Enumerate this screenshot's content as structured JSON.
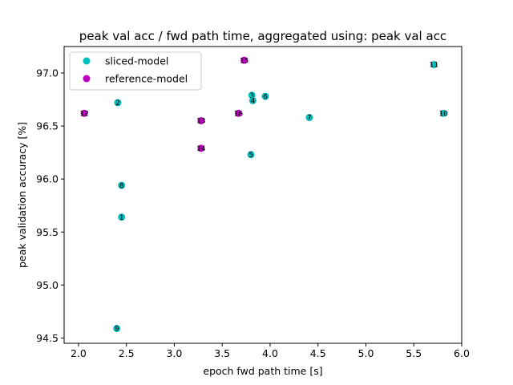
{
  "chart_data": {
    "type": "scatter",
    "title": "peak val acc / fwd path time, aggregated using: peak val acc",
    "xlabel": "epoch fwd path time [s]",
    "ylabel": "peak validation accuracy [%]",
    "xlim": [
      1.85,
      6.0
    ],
    "ylim": [
      94.45,
      97.25
    ],
    "xticks": [
      "2.0",
      "2.5",
      "3.0",
      "3.5",
      "4.0",
      "4.5",
      "5.0",
      "5.5",
      "6.0"
    ],
    "yticks": [
      "94.5",
      "95.0",
      "95.5",
      "96.0",
      "96.5",
      "97.0"
    ],
    "grid": false,
    "legend": "top-left",
    "series": [
      {
        "name": "sliced-model",
        "color": "#00bfbf",
        "points": [
          {
            "label": "1",
            "x": 2.45,
            "y": 95.64
          },
          {
            "label": "2",
            "x": 2.41,
            "y": 96.72
          },
          {
            "label": "3",
            "x": 3.81,
            "y": 96.79
          },
          {
            "label": "4",
            "x": 3.82,
            "y": 96.74
          },
          {
            "label": "5",
            "x": 3.8,
            "y": 96.23
          },
          {
            "label": "6",
            "x": 3.95,
            "y": 96.78
          },
          {
            "label": "7",
            "x": 4.41,
            "y": 96.58
          },
          {
            "label": "8",
            "x": 2.45,
            "y": 95.94
          },
          {
            "label": "9",
            "x": 2.4,
            "y": 94.59
          },
          {
            "label": "10",
            "x": 5.81,
            "y": 96.62
          },
          {
            "label": "11",
            "x": 5.71,
            "y": 97.08
          }
        ]
      },
      {
        "name": "reference-model",
        "color": "#bf00bf",
        "points": [
          {
            "label": "12",
            "x": 2.06,
            "y": 96.62
          },
          {
            "label": "13",
            "x": 3.28,
            "y": 96.55
          },
          {
            "label": "14",
            "x": 3.28,
            "y": 96.29
          },
          {
            "label": "15",
            "x": 3.73,
            "y": 97.12
          },
          {
            "label": "16",
            "x": 3.67,
            "y": 96.62
          }
        ]
      }
    ]
  }
}
